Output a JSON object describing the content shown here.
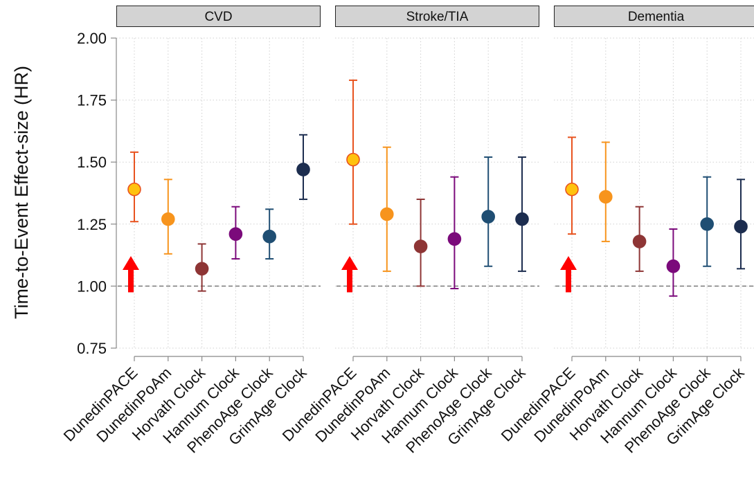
{
  "chart_data": {
    "type": "scatter",
    "subtype": "point-range (faceted)",
    "ylabel": "Time-to-Event Effect-size (HR)",
    "ylim": [
      0.75,
      2.0
    ],
    "yticks": [
      0.75,
      1.0,
      1.25,
      1.5,
      1.75,
      2.0
    ],
    "ytick_labels": [
      "0.75",
      "1.00",
      "1.25",
      "1.50",
      "1.75",
      "2.00"
    ],
    "reference_line": 1.0,
    "grid": true,
    "categories": [
      "DunedinPACE",
      "DunedinPoAm",
      "Horvath Clock",
      "Hannum Clock",
      "PhenoAge Clock",
      "GrimAge Clock"
    ],
    "colors": {
      "DunedinPACE": {
        "point": "#FFC20E",
        "outline": "#E8531F",
        "bar": "#E8531F"
      },
      "DunedinPoAm": {
        "point": "#F7941D",
        "outline": "#F7941D",
        "bar": "#F7941D"
      },
      "Horvath Clock": {
        "point": "#8E3535",
        "outline": "#8E3535",
        "bar": "#8E3535"
      },
      "Hannum Clock": {
        "point": "#7B0A7B",
        "outline": "#7B0A7B",
        "bar": "#7B0A7B"
      },
      "PhenoAge Clock": {
        "point": "#1F4E73",
        "outline": "#1F4E73",
        "bar": "#1F4E73"
      },
      "GrimAge Clock": {
        "point": "#1C2D4F",
        "outline": "#1C2D4F",
        "bar": "#1C2D4F"
      }
    },
    "highlight": {
      "category": "DunedinPACE",
      "marker": "arrow",
      "color": "#FF0000"
    },
    "panels": [
      {
        "title": "CVD",
        "points": [
          {
            "category": "DunedinPACE",
            "hr": 1.39,
            "lower": 1.26,
            "upper": 1.54
          },
          {
            "category": "DunedinPoAm",
            "hr": 1.27,
            "lower": 1.13,
            "upper": 1.43
          },
          {
            "category": "Horvath Clock",
            "hr": 1.07,
            "lower": 0.98,
            "upper": 1.17
          },
          {
            "category": "Hannum Clock",
            "hr": 1.21,
            "lower": 1.11,
            "upper": 1.32
          },
          {
            "category": "PhenoAge Clock",
            "hr": 1.2,
            "lower": 1.11,
            "upper": 1.31
          },
          {
            "category": "GrimAge Clock",
            "hr": 1.47,
            "lower": 1.35,
            "upper": 1.61
          }
        ]
      },
      {
        "title": "Stroke/TIA",
        "points": [
          {
            "category": "DunedinPACE",
            "hr": 1.51,
            "lower": 1.25,
            "upper": 1.83
          },
          {
            "category": "DunedinPoAm",
            "hr": 1.29,
            "lower": 1.06,
            "upper": 1.56
          },
          {
            "category": "Horvath Clock",
            "hr": 1.16,
            "lower": 1.0,
            "upper": 1.35
          },
          {
            "category": "Hannum Clock",
            "hr": 1.19,
            "lower": 0.99,
            "upper": 1.44
          },
          {
            "category": "PhenoAge Clock",
            "hr": 1.28,
            "lower": 1.08,
            "upper": 1.52
          },
          {
            "category": "GrimAge Clock",
            "hr": 1.27,
            "lower": 1.06,
            "upper": 1.52
          }
        ]
      },
      {
        "title": "Dementia",
        "points": [
          {
            "category": "DunedinPACE",
            "hr": 1.39,
            "lower": 1.21,
            "upper": 1.6
          },
          {
            "category": "DunedinPoAm",
            "hr": 1.36,
            "lower": 1.18,
            "upper": 1.58
          },
          {
            "category": "Horvath Clock",
            "hr": 1.18,
            "lower": 1.06,
            "upper": 1.32
          },
          {
            "category": "Hannum Clock",
            "hr": 1.08,
            "lower": 0.96,
            "upper": 1.23
          },
          {
            "category": "PhenoAge Clock",
            "hr": 1.25,
            "lower": 1.08,
            "upper": 1.44
          },
          {
            "category": "GrimAge Clock",
            "hr": 1.24,
            "lower": 1.07,
            "upper": 1.43
          }
        ]
      }
    ]
  }
}
